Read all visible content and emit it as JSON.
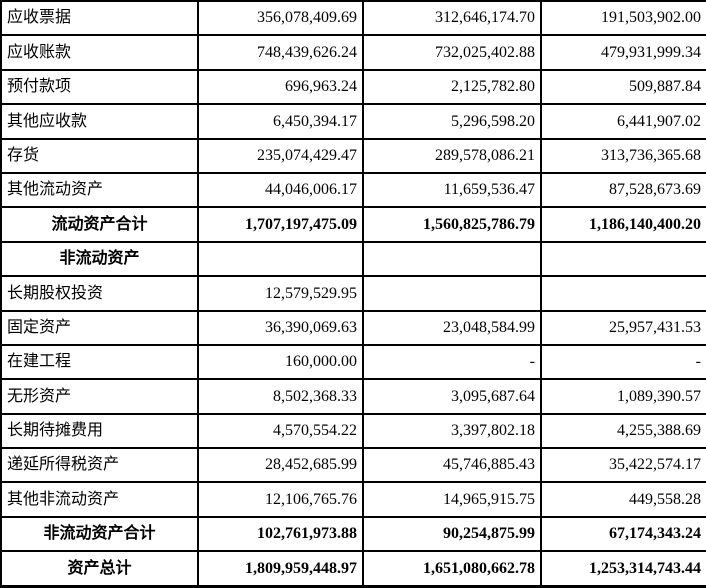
{
  "table": {
    "rows": [
      {
        "label": "应收票据",
        "bold": false,
        "values": [
          "356,078,409.69",
          "312,646,174.70",
          "191,503,902.00"
        ]
      },
      {
        "label": "应收账款",
        "bold": false,
        "values": [
          "748,439,626.24",
          "732,025,402.88",
          "479,931,999.34"
        ]
      },
      {
        "label": "预付款项",
        "bold": false,
        "values": [
          "696,963.24",
          "2,125,782.80",
          "509,887.84"
        ]
      },
      {
        "label": "其他应收款",
        "bold": false,
        "values": [
          "6,450,394.17",
          "5,296,598.20",
          "6,441,907.02"
        ]
      },
      {
        "label": "存货",
        "bold": false,
        "values": [
          "235,074,429.47",
          "289,578,086.21",
          "313,736,365.68"
        ]
      },
      {
        "label": "其他流动资产",
        "bold": false,
        "values": [
          "44,046,006.17",
          "11,659,536.47",
          "87,528,673.69"
        ]
      },
      {
        "label": "流动资产合计",
        "bold": true,
        "values": [
          "1,707,197,475.09",
          "1,560,825,786.79",
          "1,186,140,400.20"
        ]
      },
      {
        "label": "非流动资产",
        "bold": true,
        "values": [
          "",
          "",
          ""
        ]
      },
      {
        "label": "长期股权投资",
        "bold": false,
        "values": [
          "12,579,529.95",
          "",
          ""
        ]
      },
      {
        "label": "固定资产",
        "bold": false,
        "values": [
          "36,390,069.63",
          "23,048,584.99",
          "25,957,431.53"
        ]
      },
      {
        "label": "在建工程",
        "bold": false,
        "values": [
          "160,000.00",
          "-",
          "-"
        ]
      },
      {
        "label": "无形资产",
        "bold": false,
        "values": [
          "8,502,368.33",
          "3,095,687.64",
          "1,089,390.57"
        ]
      },
      {
        "label": "长期待摊费用",
        "bold": false,
        "values": [
          "4,570,554.22",
          "3,397,802.18",
          "4,255,388.69"
        ]
      },
      {
        "label": "递延所得税资产",
        "bold": false,
        "values": [
          "28,452,685.99",
          "45,746,885.43",
          "35,422,574.17"
        ]
      },
      {
        "label": "其他非流动资产",
        "bold": false,
        "values": [
          "12,106,765.76",
          "14,965,915.75",
          "449,558.28"
        ]
      },
      {
        "label": "非流动资产合计",
        "bold": true,
        "values": [
          "102,761,973.88",
          "90,254,875.99",
          "67,174,343.24"
        ]
      },
      {
        "label": "资产总计",
        "bold": true,
        "values": [
          "1,809,959,448.97",
          "1,651,080,662.78",
          "1,253,314,743.44"
        ]
      }
    ]
  }
}
